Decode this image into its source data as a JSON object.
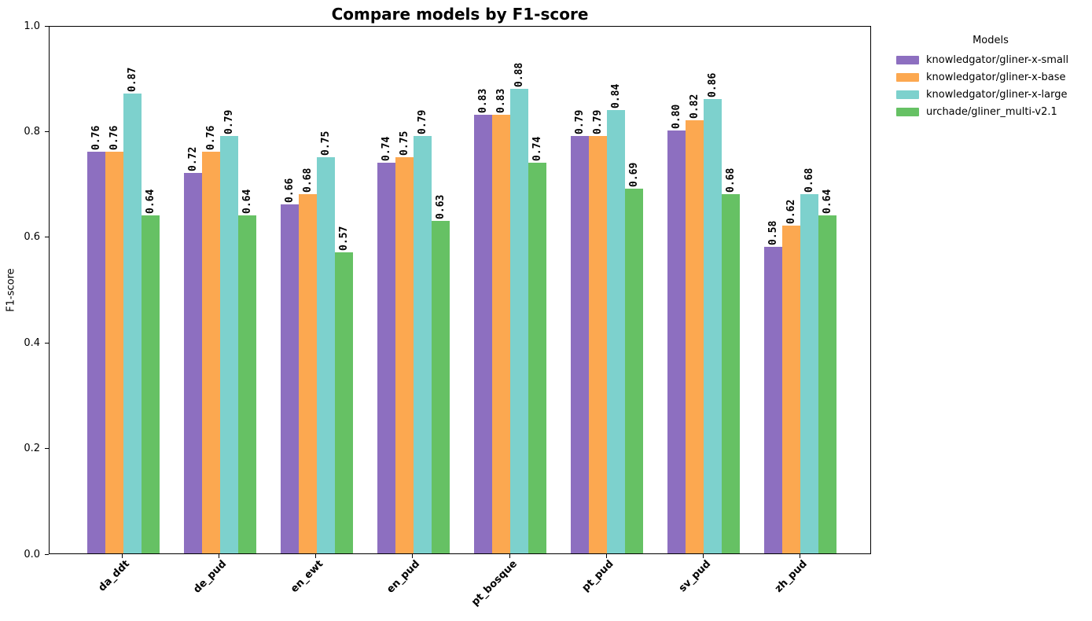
{
  "chart_data": {
    "type": "bar",
    "title": "Compare models by F1-score",
    "ylabel": "F1-score",
    "xlabel": "",
    "ylim": [
      0.0,
      1.0
    ],
    "yticks": [
      0.0,
      0.2,
      0.4,
      0.6,
      0.8,
      1.0
    ],
    "grid": false,
    "legend_title": "Models",
    "legend_position": "outside-right-top",
    "xtick_rotation": 45,
    "bar_label_rotation": 90,
    "bar_label_decimals": 2,
    "categories": [
      "da_ddt",
      "de_pud",
      "en_ewt",
      "en_pud",
      "pt_bosque",
      "pt_pud",
      "sv_pud",
      "zh_pud"
    ],
    "series": [
      {
        "name": "knowledgator/gliner-x-small",
        "color": "#8d6fc0",
        "values": [
          0.76,
          0.72,
          0.66,
          0.74,
          0.83,
          0.79,
          0.8,
          0.58
        ]
      },
      {
        "name": "knowledgator/gliner-x-base",
        "color": "#fca850",
        "values": [
          0.76,
          0.76,
          0.68,
          0.75,
          0.83,
          0.79,
          0.82,
          0.62
        ]
      },
      {
        "name": "knowledgator/gliner-x-large",
        "color": "#7dd1cd",
        "values": [
          0.87,
          0.79,
          0.75,
          0.79,
          0.88,
          0.84,
          0.86,
          0.68
        ]
      },
      {
        "name": "urchade/gliner_multi-v2.1",
        "color": "#66c164",
        "values": [
          0.64,
          0.64,
          0.57,
          0.63,
          0.74,
          0.69,
          0.68,
          0.64
        ]
      }
    ]
  }
}
